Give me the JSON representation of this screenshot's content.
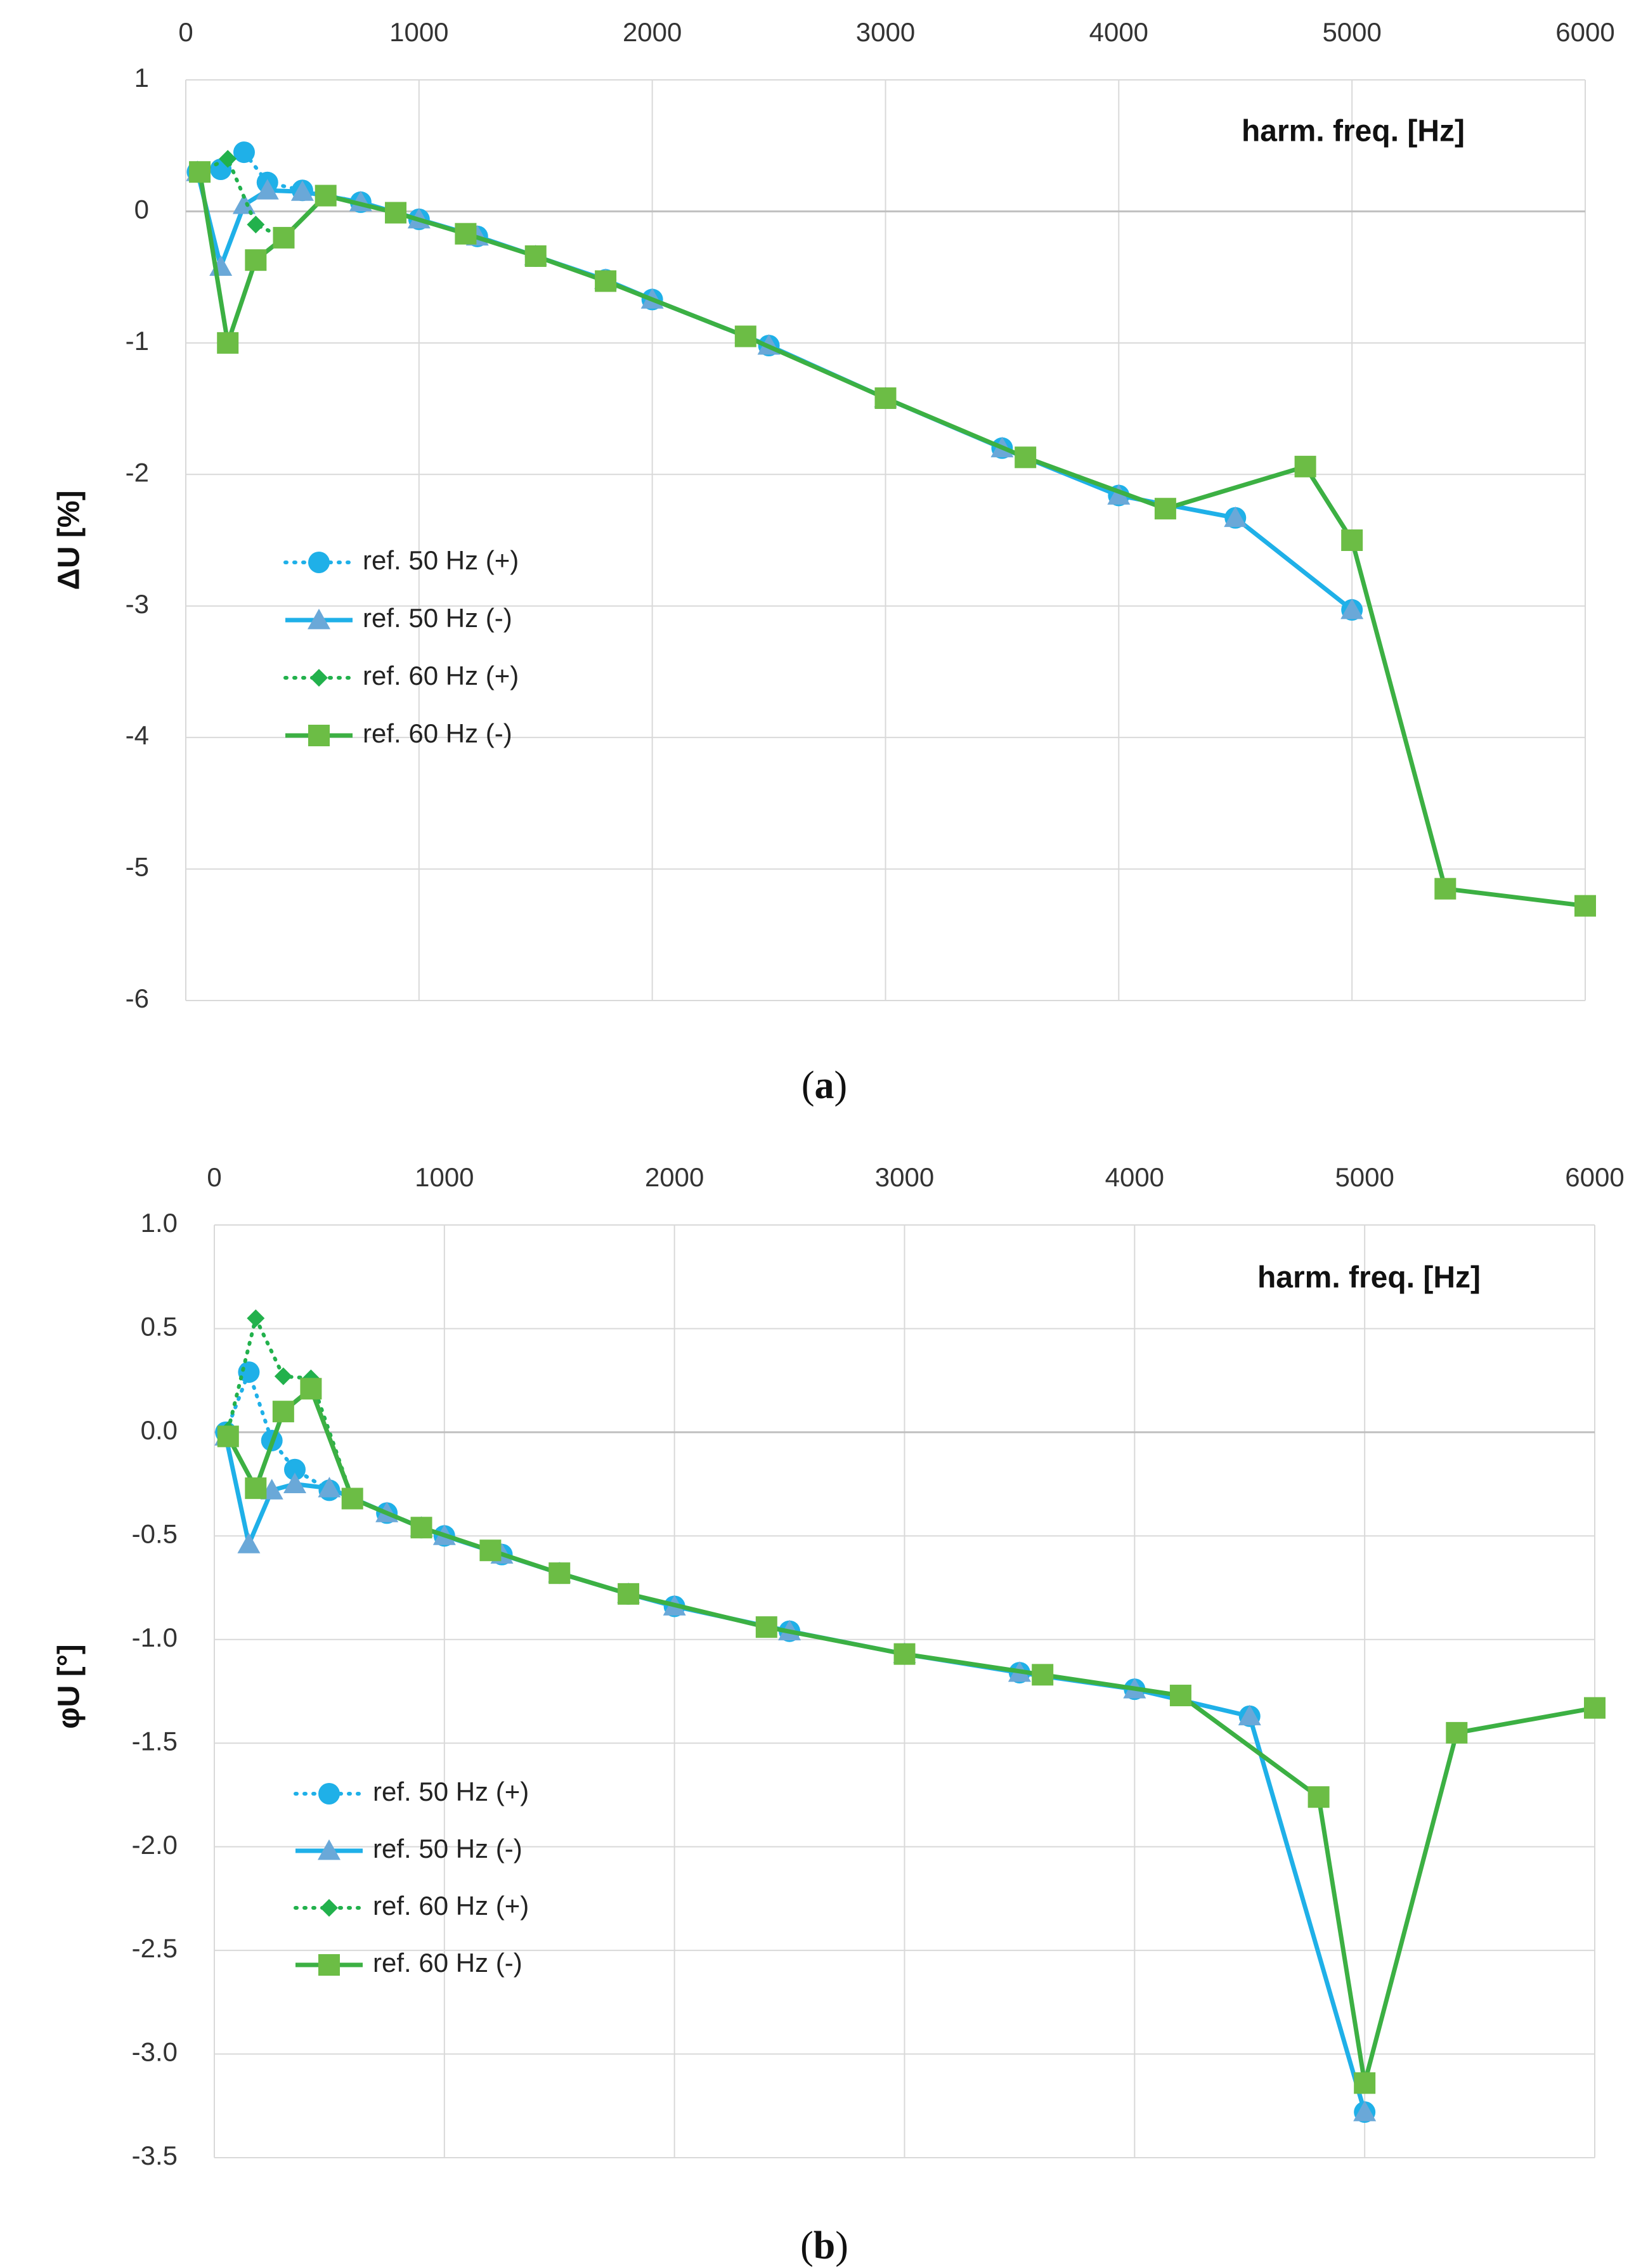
{
  "chart_data": [
    {
      "type": "line",
      "panel": "a",
      "caption_letter": "a",
      "title": "",
      "xlabel": "harm. freq. [Hz]",
      "ylabel": "ΔU [%]",
      "xlim": [
        0,
        6000
      ],
      "ylim": [
        -6,
        1
      ],
      "xticks": [
        0,
        1000,
        2000,
        3000,
        4000,
        5000,
        6000
      ],
      "yticks": [
        1,
        0,
        -1,
        -2,
        -3,
        -4,
        -5,
        -6
      ],
      "ytick_labels": [
        "1",
        "0",
        "-1",
        "-2",
        "-3",
        "-4",
        "-5",
        "-6"
      ],
      "x_axis_position": "top",
      "grid": true,
      "legend_position": "left-middle",
      "series": [
        {
          "name": "ref. 50 Hz (+)",
          "color": "#1fb0e8",
          "line": "dotted",
          "marker": "circle",
          "x": [
            50,
            150,
            250,
            350,
            500,
            750,
            1000,
            1250,
            1500,
            1800,
            2000,
            2500,
            3000,
            3500,
            4000,
            4500,
            5000
          ],
          "y": [
            0.3,
            0.32,
            0.45,
            0.22,
            0.16,
            0.07,
            -0.06,
            -0.19,
            -0.34,
            -0.52,
            -0.67,
            -1.02,
            -1.42,
            -1.8,
            -2.16,
            -2.33,
            -3.03
          ]
        },
        {
          "name": "ref. 50 Hz (-)",
          "color": "#1fb0e8",
          "line": "solid",
          "marker": "triangle",
          "x": [
            50,
            150,
            250,
            350,
            500,
            750,
            1000,
            1250,
            1500,
            1800,
            2000,
            2500,
            3000,
            3500,
            4000,
            4500,
            5000
          ],
          "y": [
            0.3,
            -0.42,
            0.05,
            0.16,
            0.15,
            0.07,
            -0.06,
            -0.19,
            -0.34,
            -0.52,
            -0.67,
            -1.02,
            -1.42,
            -1.8,
            -2.16,
            -2.33,
            -3.03
          ]
        },
        {
          "name": "ref. 60 Hz (+)",
          "color": "#22b14c",
          "line": "dotted",
          "marker": "diamond",
          "x": [
            60,
            180,
            300,
            420,
            600,
            900,
            1200,
            1500,
            1800,
            2400,
            3000,
            3600,
            4200,
            4800,
            5000,
            5400,
            6000
          ],
          "y": [
            0.3,
            0.4,
            -0.1,
            -0.2,
            0.12,
            -0.01,
            -0.17,
            -0.34,
            -0.53,
            -0.95,
            -1.42,
            -1.87,
            -2.26,
            -1.94,
            -2.5,
            -5.15,
            -5.28
          ]
        },
        {
          "name": "ref. 60 Hz (-)",
          "color": "#3cb043",
          "line": "solid",
          "marker": "square",
          "x": [
            60,
            180,
            300,
            420,
            600,
            900,
            1200,
            1500,
            1800,
            2400,
            3000,
            3600,
            4200,
            4800,
            5000,
            5400,
            6000
          ],
          "y": [
            0.3,
            -1.0,
            -0.37,
            -0.2,
            0.12,
            -0.01,
            -0.17,
            -0.34,
            -0.53,
            -0.95,
            -1.42,
            -1.87,
            -2.26,
            -1.94,
            -2.5,
            -5.15,
            -5.28
          ]
        }
      ]
    },
    {
      "type": "line",
      "panel": "b",
      "caption_letter": "b",
      "title": "",
      "xlabel": "harm. freq. [Hz]",
      "ylabel": "φU [°]",
      "xlim": [
        0,
        6000
      ],
      "ylim": [
        -3.5,
        1.0
      ],
      "xticks": [
        0,
        1000,
        2000,
        3000,
        4000,
        5000,
        6000
      ],
      "yticks": [
        1.0,
        0.5,
        0.0,
        -0.5,
        -1.0,
        -1.5,
        -2.0,
        -2.5,
        -3.0,
        -3.5
      ],
      "ytick_labels": [
        "1.0",
        "0.5",
        "0.0",
        "-0.5",
        "-1.0",
        "-1.5",
        "-2.0",
        "-2.5",
        "-3.0",
        "-3.5"
      ],
      "x_axis_position": "top",
      "grid": true,
      "legend_position": "left-middle",
      "series": [
        {
          "name": "ref. 50 Hz (+)",
          "color": "#1fb0e8",
          "line": "dotted",
          "marker": "circle",
          "x": [
            50,
            150,
            250,
            350,
            500,
            750,
            900,
            1000,
            1250,
            1500,
            1800,
            2000,
            2500,
            3000,
            3500,
            4000,
            4500,
            5000
          ],
          "y": [
            0.0,
            0.29,
            -0.04,
            -0.18,
            -0.28,
            -0.39,
            -0.46,
            -0.5,
            -0.59,
            -0.68,
            -0.78,
            -0.84,
            -0.96,
            -1.07,
            -1.16,
            -1.24,
            -1.37,
            -3.28
          ]
        },
        {
          "name": "ref. 50 Hz (-)",
          "color": "#1fb0e8",
          "line": "solid",
          "marker": "triangle",
          "x": [
            50,
            150,
            250,
            350,
            500,
            750,
            900,
            1000,
            1250,
            1500,
            1800,
            2000,
            2500,
            3000,
            3500,
            4000,
            4500,
            5000
          ],
          "y": [
            -0.02,
            -0.54,
            -0.28,
            -0.25,
            -0.27,
            -0.39,
            -0.46,
            -0.5,
            -0.59,
            -0.68,
            -0.78,
            -0.84,
            -0.96,
            -1.07,
            -1.16,
            -1.24,
            -1.37,
            -3.28
          ]
        },
        {
          "name": "ref. 60 Hz (+)",
          "color": "#22b14c",
          "line": "dotted",
          "marker": "diamond",
          "x": [
            60,
            180,
            300,
            420,
            600,
            900,
            1200,
            1500,
            1800,
            2400,
            3000,
            3600,
            4200,
            4800,
            5000,
            5400,
            6000
          ],
          "y": [
            0.01,
            0.55,
            0.27,
            0.26,
            -0.32,
            -0.46,
            -0.57,
            -0.68,
            -0.78,
            -0.94,
            -1.07,
            -1.17,
            -1.27,
            -1.76,
            -3.14,
            -1.45,
            -1.33
          ]
        },
        {
          "name": "ref. 60 Hz (-)",
          "color": "#3cb043",
          "line": "solid",
          "marker": "square",
          "x": [
            60,
            180,
            300,
            420,
            600,
            900,
            1200,
            1500,
            1800,
            2400,
            3000,
            3600,
            4200,
            4800,
            5000,
            5400,
            6000
          ],
          "y": [
            -0.02,
            -0.27,
            0.1,
            0.21,
            -0.32,
            -0.46,
            -0.57,
            -0.68,
            -0.78,
            -0.94,
            -1.07,
            -1.17,
            -1.27,
            -1.76,
            -3.14,
            -1.45,
            -1.33
          ]
        }
      ]
    }
  ]
}
